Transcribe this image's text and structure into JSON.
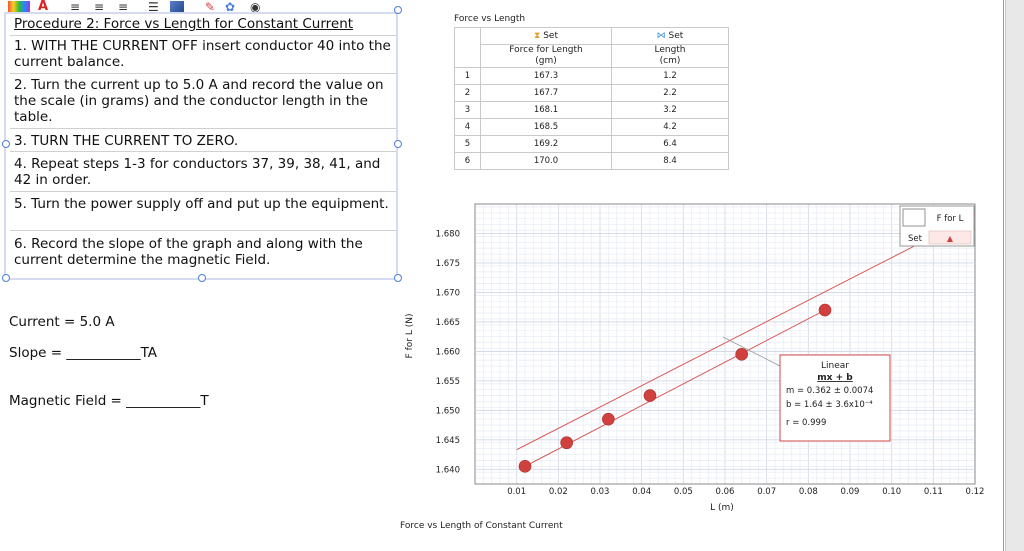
{
  "toolbar": {
    "items": [
      "A",
      "≡",
      "≡",
      "≡",
      "☰"
    ]
  },
  "procedure": {
    "title": "Procedure 2: Force vs Length for Constant Current",
    "step1": "1. WITH THE CURRENT OFF insert conductor 40 into the current balance.",
    "step2": "2. Turn the current up to 5.0 A and record the value on the scale (in grams) and the conductor length in the table.",
    "step3": "3. TURN THE CURRENT TO ZERO.",
    "step4": "4. Repeat steps 1-3 for conductors 37, 39, 38, 41, and 42 in order.",
    "step5": "5. Turn the power supply off and put up the equipment.",
    "step6": "6. Record the slope of the graph and along with the current determine the magnetic Field."
  },
  "form": {
    "current": "Current = 5.0 A",
    "slope": "Slope = ___________TA",
    "field": "Magnetic Field = ___________T"
  },
  "table": {
    "title": "Force vs Length",
    "col1_set": "Set",
    "col2_set": "Set",
    "col1_name": "Force for Length",
    "col1_unit": "(gm)",
    "col2_name": "Length",
    "col2_unit": "(cm)",
    "rows": [
      {
        "n": "1",
        "force": "167.3",
        "length": "1.2"
      },
      {
        "n": "2",
        "force": "167.7",
        "length": "2.2"
      },
      {
        "n": "3",
        "force": "168.1",
        "length": "3.2"
      },
      {
        "n": "4",
        "force": "168.5",
        "length": "4.2"
      },
      {
        "n": "5",
        "force": "169.2",
        "length": "6.4"
      },
      {
        "n": "6",
        "force": "170.0",
        "length": "8.4"
      }
    ]
  },
  "legend": {
    "label": "F for L",
    "set": "Set"
  },
  "fit": {
    "type": "Linear",
    "eq": "mx + b",
    "m": "m = 0.362 ± 0.0074",
    "b": "b = 1.64  ± 3.6x10⁻⁴",
    "r": "r = 0.999"
  },
  "graph_caption": "Force vs Length of Constant Current",
  "colors": {
    "point": "#d0413e",
    "fit_line": "#d84a47",
    "grid_major": "#cfd6e6",
    "grid_minor": "#e9edf5",
    "handle": "#4a7fd8"
  },
  "chart_data": {
    "type": "scatter",
    "xlabel": "L (m)",
    "ylabel": "F for L (N)",
    "xlim": [
      0.0,
      0.12
    ],
    "ylim": [
      1.6375,
      1.685
    ],
    "x_ticks": [
      "0.01",
      "0.02",
      "0.03",
      "0.04",
      "0.05",
      "0.06",
      "0.07",
      "0.08",
      "0.09",
      "0.10",
      "0.11",
      "0.12"
    ],
    "y_ticks": [
      "1.640",
      "1.645",
      "1.650",
      "1.655",
      "1.660",
      "1.665",
      "1.670",
      "1.675",
      "1.680"
    ],
    "series": [
      {
        "name": "F for L",
        "x": [
          0.012,
          0.022,
          0.032,
          0.042,
          0.064,
          0.084
        ],
        "y": [
          1.6405,
          1.6445,
          1.6485,
          1.6525,
          1.6595,
          1.667
        ]
      }
    ],
    "fit": {
      "slope": 0.362,
      "intercept": 1.64
    }
  }
}
